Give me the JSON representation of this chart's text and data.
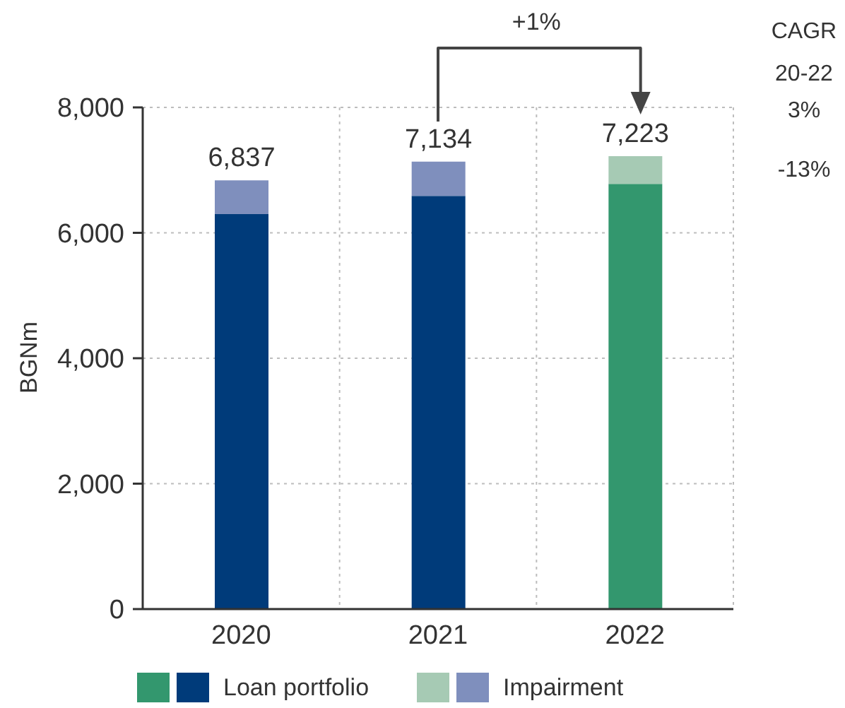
{
  "chart_data": {
    "type": "bar",
    "ylabel": "BGNm",
    "categories": [
      "2020",
      "2021",
      "2022"
    ],
    "series": [
      {
        "name": "Loan portfolio",
        "colors": [
          "#003b7a",
          "#003b7a",
          "#33976e"
        ],
        "values": [
          6300,
          6590,
          6780
        ]
      },
      {
        "name": "Impairment",
        "colors": [
          "#7f8fbd",
          "#7f8fbd",
          "#a6cab4"
        ],
        "values": [
          537,
          544,
          443
        ]
      }
    ],
    "stacked": true,
    "totals": [
      "6,837",
      "7,134",
      "7,223"
    ],
    "ylim": [
      0,
      8000
    ],
    "yticks": [
      0,
      {
        "value": 2000,
        "label": "2,000"
      },
      {
        "value": 4000,
        "label": "4,000"
      },
      {
        "value": 6000,
        "label": "6,000"
      },
      {
        "value": 8000,
        "label": "8,000"
      }
    ],
    "grid": true,
    "legend": "bottom",
    "annotations": [
      "+1%",
      "CAGR",
      "20-22",
      "3%",
      "-13%"
    ]
  }
}
